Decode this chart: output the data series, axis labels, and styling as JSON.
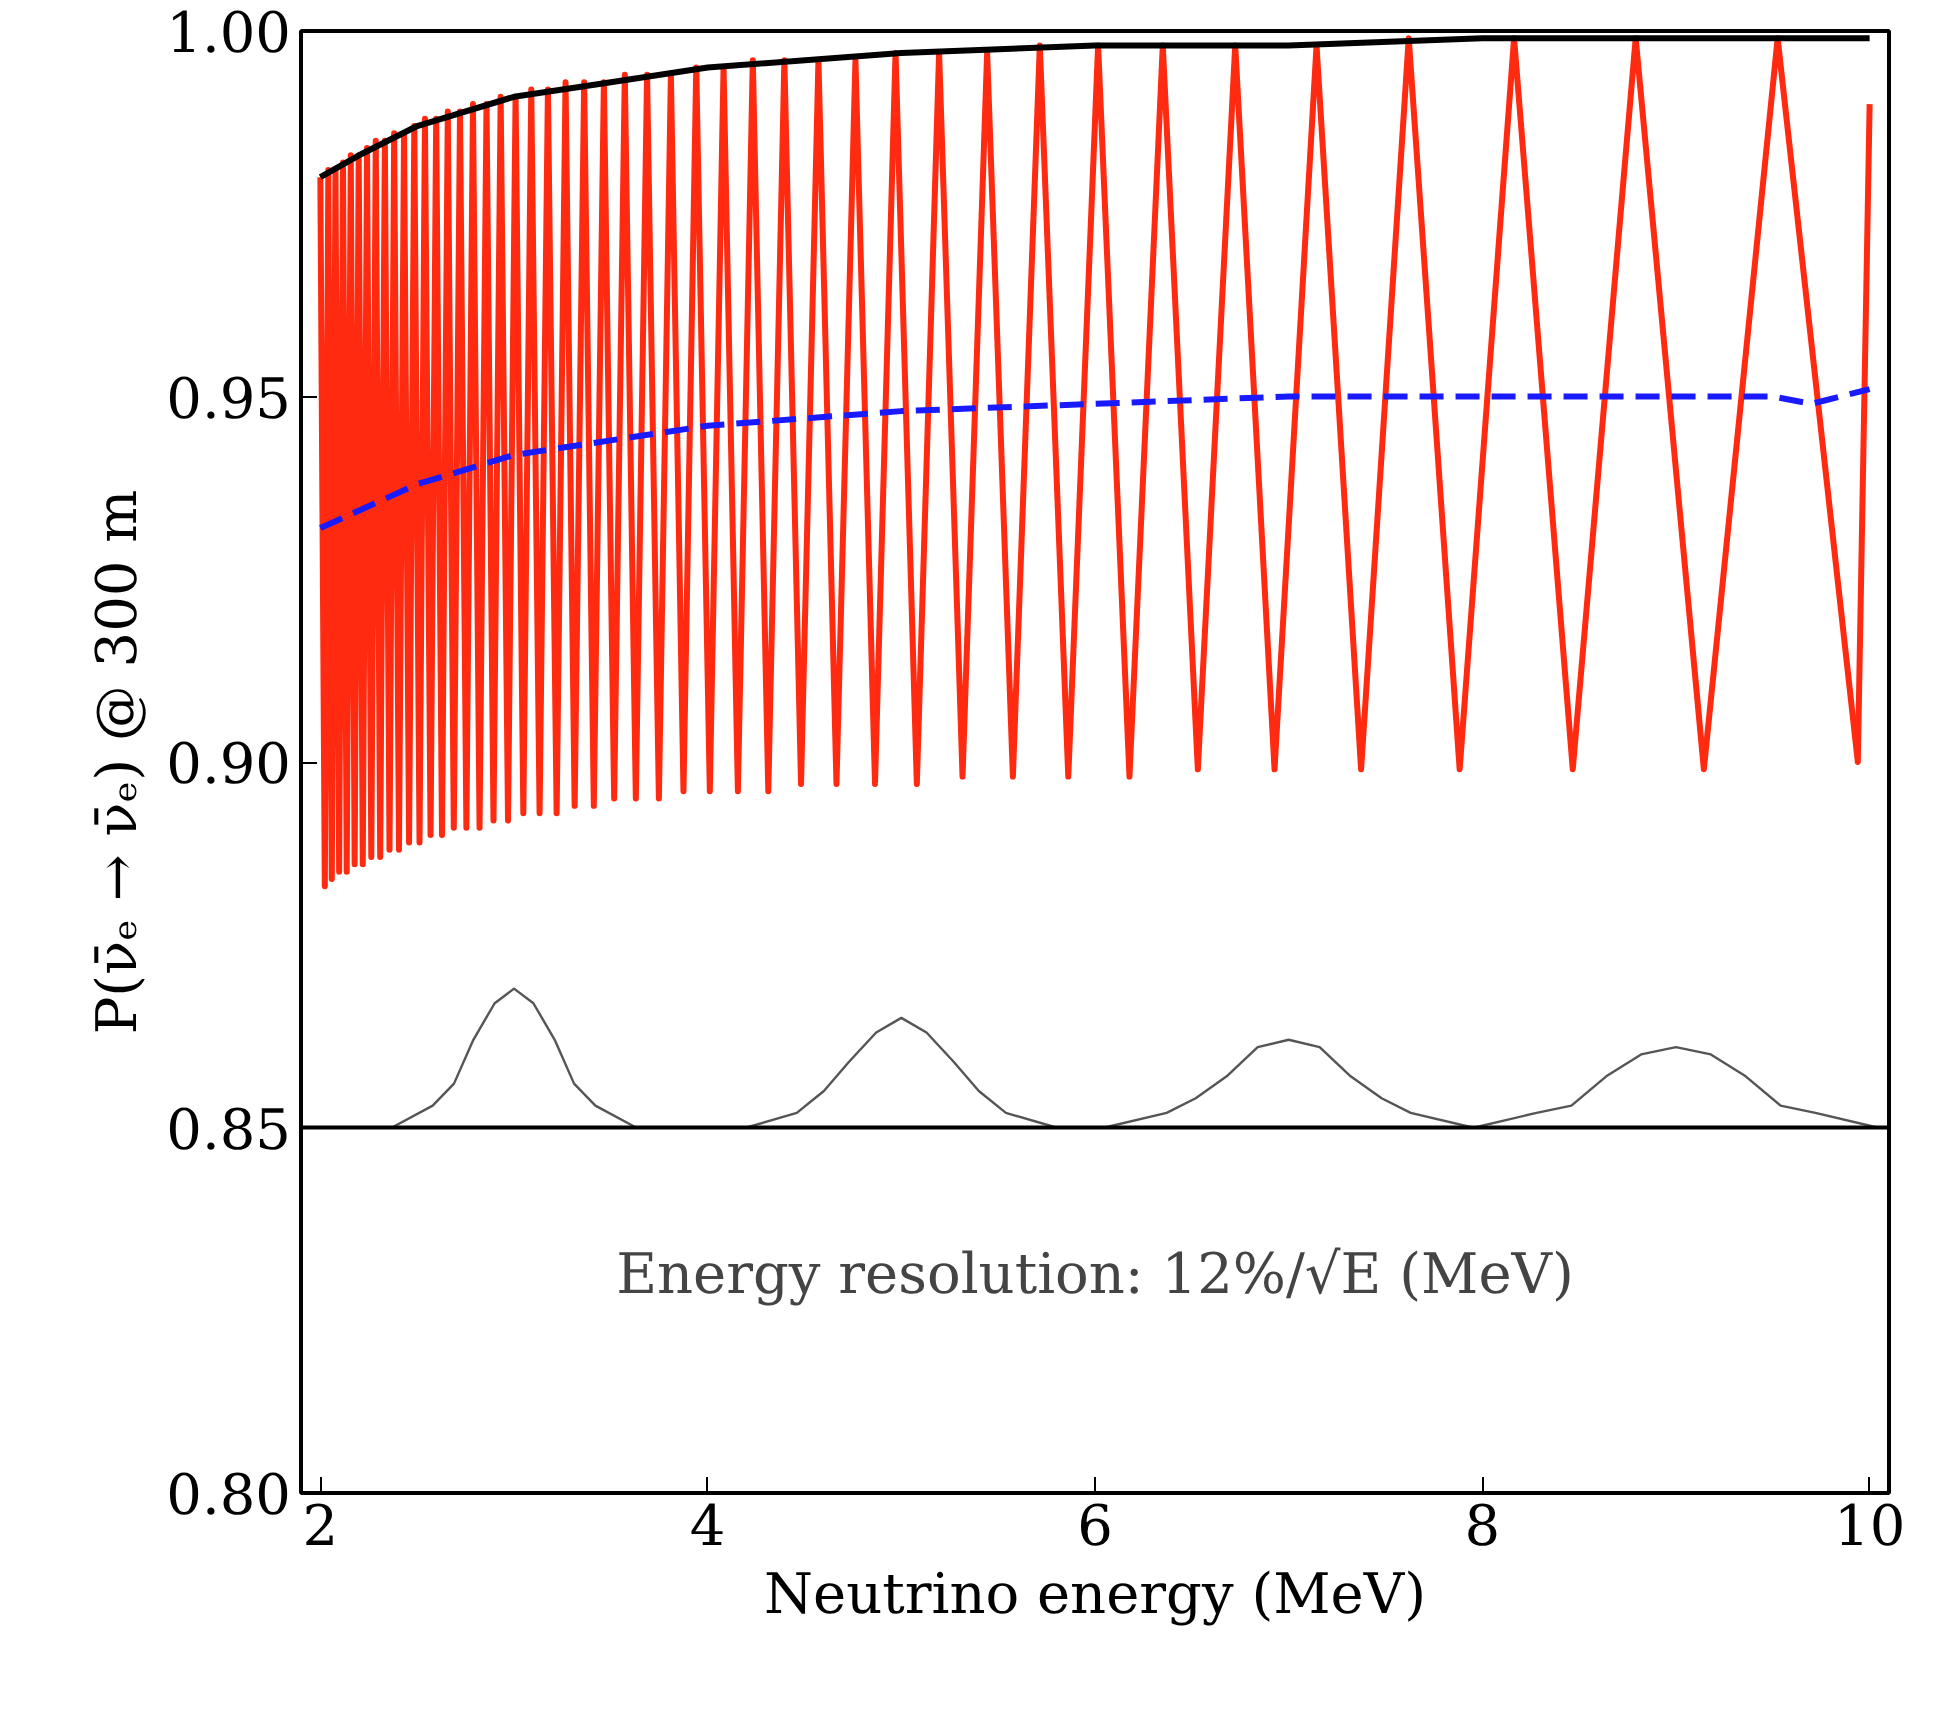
{
  "chart_data": {
    "type": "line",
    "xlabel": "Neutrino energy (MeV)",
    "ylabel": "P(ν̄ₑ → ν̄ₑ) @ 300 m",
    "xlim": [
      1.9,
      10.1
    ],
    "ylim": [
      0.8,
      1.0
    ],
    "xticks": [
      2,
      4,
      6,
      8,
      10
    ],
    "yticks": [
      {
        "value": 0.8,
        "label": "0.80"
      },
      {
        "value": 0.85,
        "label": "0.85"
      },
      {
        "value": 0.9,
        "label": "0.90"
      },
      {
        "value": 0.95,
        "label": "0.95"
      },
      {
        "value": 1.0,
        "label": "1.00"
      }
    ],
    "grid": false,
    "marker": "none",
    "line_style": "solid",
    "series": [
      {
        "color": "#ff2a10",
        "x": [
          2.0,
          2.023,
          2.041,
          2.059,
          2.078,
          2.097,
          2.117,
          2.136,
          2.157,
          2.177,
          2.198,
          2.219,
          2.241,
          2.263,
          2.286,
          2.309,
          2.333,
          2.357,
          2.381,
          2.406,
          2.432,
          2.458,
          2.485,
          2.512,
          2.54,
          2.569,
          2.598,
          2.628,
          2.658,
          2.689,
          2.721,
          2.754,
          2.788,
          2.822,
          2.858,
          2.894,
          2.931,
          2.969,
          3.008,
          3.048,
          3.089,
          3.132,
          3.175,
          3.22,
          3.266,
          3.313,
          3.362,
          3.412,
          3.464,
          3.517,
          3.572,
          3.629,
          3.687,
          3.748,
          3.81,
          3.875,
          3.941,
          4.011,
          4.082,
          4.156,
          4.233,
          4.313,
          4.396,
          4.482,
          4.572,
          4.665,
          4.763,
          4.864,
          4.97,
          5.08,
          5.195,
          5.316,
          5.443,
          5.576,
          5.715,
          5.862,
          6.016,
          6.178,
          6.35,
          6.531,
          6.724,
          6.927,
          7.144,
          7.374,
          7.62,
          7.883,
          8.164,
          8.467,
          8.792,
          9.144,
          9.525,
          9.939,
          10.0
        ],
        "values": [
          0.98,
          0.883,
          0.981,
          0.884,
          0.981,
          0.885,
          0.982,
          0.885,
          0.983,
          0.886,
          0.983,
          0.886,
          0.984,
          0.887,
          0.985,
          0.887,
          0.985,
          0.888,
          0.986,
          0.888,
          0.986,
          0.889,
          0.987,
          0.889,
          0.988,
          0.89,
          0.988,
          0.89,
          0.989,
          0.891,
          0.989,
          0.891,
          0.99,
          0.891,
          0.99,
          0.892,
          0.991,
          0.892,
          0.991,
          0.893,
          0.992,
          0.893,
          0.992,
          0.893,
          0.993,
          0.894,
          0.993,
          0.894,
          0.993,
          0.895,
          0.994,
          0.895,
          0.994,
          0.895,
          0.994,
          0.896,
          0.995,
          0.896,
          0.995,
          0.896,
          0.996,
          0.896,
          0.996,
          0.897,
          0.996,
          0.897,
          0.996,
          0.897,
          0.997,
          0.897,
          0.997,
          0.898,
          0.997,
          0.898,
          0.998,
          0.898,
          0.998,
          0.898,
          0.998,
          0.899,
          0.998,
          0.899,
          0.998,
          0.899,
          0.999,
          0.899,
          0.999,
          0.899,
          0.999,
          0.899,
          0.999,
          0.9,
          0.99
        ]
      },
      {
        "color": "#000000",
        "x": [
          2,
          2.2,
          2.5,
          3,
          3.5,
          4,
          5,
          6,
          7,
          8,
          9,
          10
        ],
        "values": [
          0.98,
          0.983,
          0.987,
          0.991,
          0.993,
          0.995,
          0.997,
          0.998,
          0.998,
          0.999,
          0.999,
          0.999
        ]
      },
      {
        "color": "#1a1aff",
        "line_style": "dashed",
        "x": [
          2,
          2.5,
          3,
          3.5,
          4,
          5,
          6,
          7,
          8,
          9,
          9.5,
          9.7,
          10
        ],
        "values": [
          0.932,
          0.938,
          0.942,
          0.944,
          0.946,
          0.948,
          0.949,
          0.95,
          0.95,
          0.95,
          0.95,
          0.949,
          0.951
        ]
      },
      {
        "color": "#555555",
        "x": [
          2.37,
          2.58,
          2.69,
          2.79,
          2.9,
          3,
          3.1,
          3.21,
          3.31,
          3.42,
          3.63
        ],
        "values": [
          0.85,
          0.853,
          0.856,
          0.862,
          0.867,
          0.869,
          0.867,
          0.862,
          0.856,
          0.853,
          0.85
        ]
      },
      {
        "color": "#555555",
        "x": [
          4.2,
          4.46,
          4.6,
          4.73,
          4.87,
          5,
          5.13,
          5.27,
          5.4,
          5.54,
          5.8
        ],
        "values": [
          0.85,
          0.852,
          0.855,
          0.859,
          0.863,
          0.865,
          0.863,
          0.859,
          0.855,
          0.852,
          0.85
        ]
      },
      {
        "color": "#555555",
        "x": [
          6.05,
          6.37,
          6.52,
          6.68,
          6.84,
          7,
          7.16,
          7.32,
          7.48,
          7.63,
          7.95
        ],
        "values": [
          0.85,
          0.852,
          0.854,
          0.857,
          0.861,
          0.862,
          0.861,
          0.857,
          0.854,
          0.852,
          0.85
        ]
      },
      {
        "color": "#555555",
        "x": [
          7.96,
          8.28,
          8.46,
          8.64,
          8.82,
          9,
          9.18,
          9.36,
          9.54,
          9.72,
          10.04
        ],
        "values": [
          0.85,
          0.852,
          0.853,
          0.857,
          0.86,
          0.861,
          0.86,
          0.857,
          0.853,
          0.852,
          0.85
        ]
      }
    ],
    "ref_lines": [
      {
        "axis": "y",
        "value": 0.85,
        "color": "#000000"
      }
    ],
    "annotations": [
      "Energy resolution: 12%/√E (MeV)"
    ]
  }
}
